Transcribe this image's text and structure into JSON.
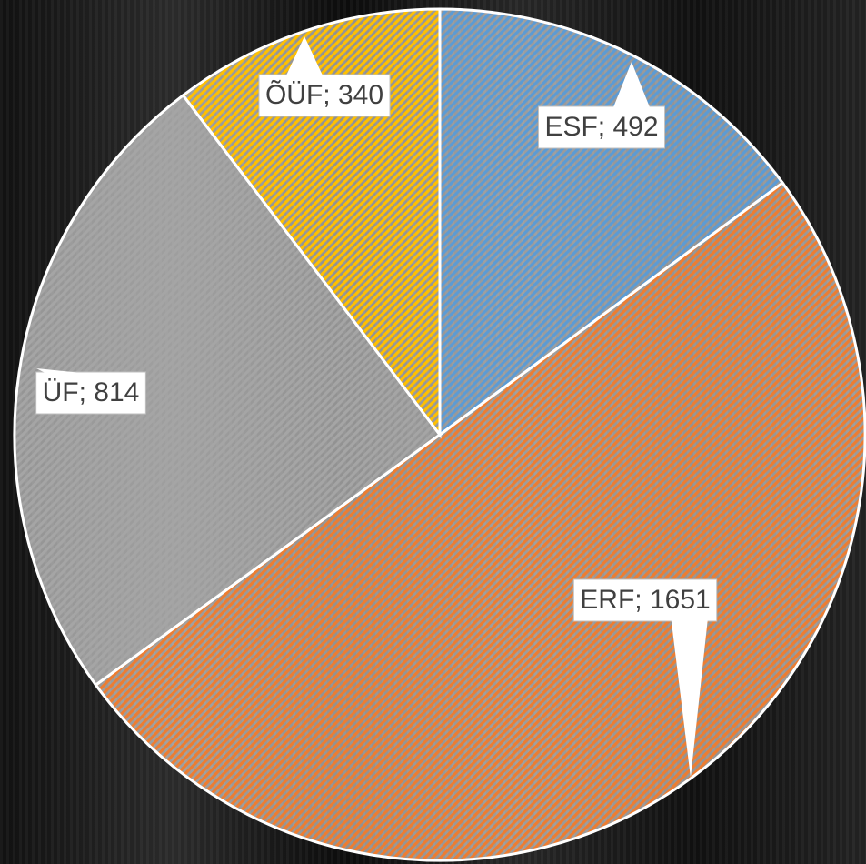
{
  "chart_data": {
    "type": "pie",
    "values": [
      492,
      1651,
      814,
      340
    ],
    "value_labels": [
      "ESF; 492",
      "ERF; 1651",
      "ÜF; 814",
      "ÕÜF; 340"
    ],
    "colors": [
      "#5b9bd5",
      "#ed7d31",
      "#a5a5a5",
      "#ffc000"
    ]
  }
}
